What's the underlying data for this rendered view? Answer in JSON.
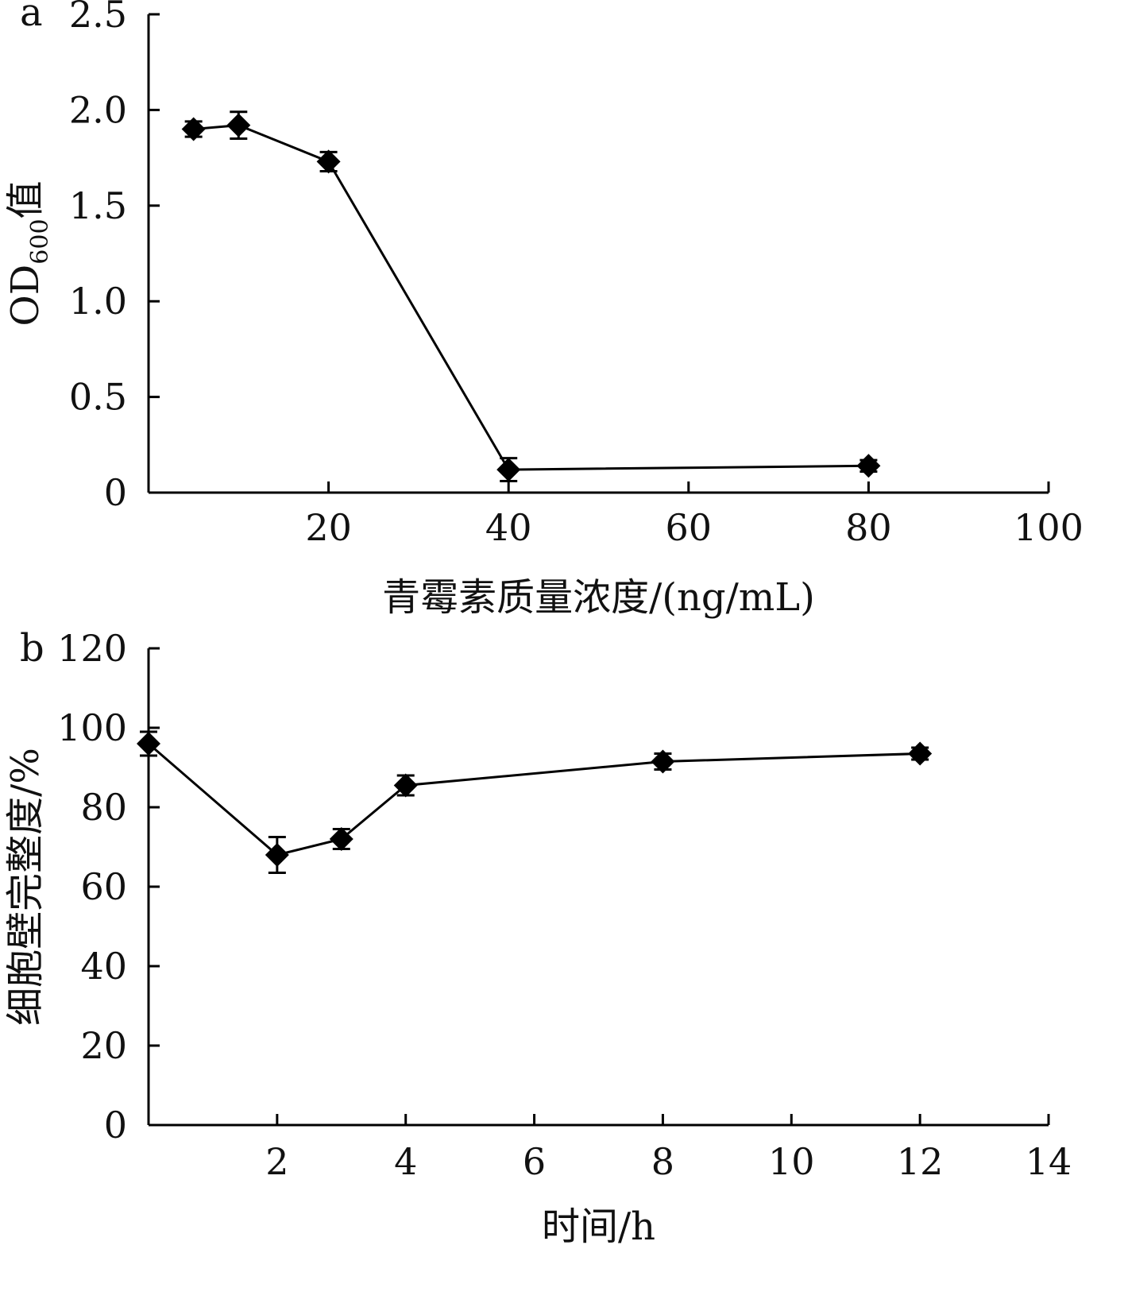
{
  "chart_data": [
    {
      "panel_label": "a",
      "type": "line",
      "xlabel": "青霉素质量浓度/(ng/mL)",
      "ylabel": "OD",
      "ylabel_sub": "600",
      "ylabel_suffix": "值",
      "xlim": [
        0,
        100
      ],
      "ylim": [
        0,
        2.5
      ],
      "x_ticks": [
        0,
        20,
        40,
        60,
        80,
        100
      ],
      "x_tick_labels": [
        "",
        "20",
        "40",
        "60",
        "80",
        "100"
      ],
      "y_ticks": [
        0,
        0.5,
        1.0,
        1.5,
        2.0,
        2.5
      ],
      "y_tick_labels": [
        "0",
        "0.5",
        "1.0",
        "1.5",
        "2.0",
        "2.5"
      ],
      "marker": "diamond",
      "color": "#000000",
      "x": [
        5,
        10,
        20,
        40,
        80
      ],
      "y": [
        1.9,
        1.92,
        1.73,
        0.12,
        0.14
      ],
      "error": [
        0.04,
        0.07,
        0.05,
        0.06,
        0.03
      ]
    },
    {
      "panel_label": "b",
      "type": "line",
      "xlabel": "时间/h",
      "ylabel": "细胞壁完整度/%",
      "xlim": [
        0,
        14
      ],
      "ylim": [
        0,
        120
      ],
      "x_ticks": [
        0,
        2,
        4,
        6,
        8,
        10,
        12,
        14
      ],
      "x_tick_labels": [
        "",
        "2",
        "4",
        "6",
        "8",
        "10",
        "12",
        "14"
      ],
      "y_ticks": [
        0,
        20,
        40,
        60,
        80,
        100,
        120
      ],
      "y_tick_labels": [
        "0",
        "20",
        "40",
        "60",
        "80",
        "100",
        "120"
      ],
      "marker": "diamond",
      "color": "#000000",
      "x": [
        0,
        2,
        3,
        4,
        8,
        12
      ],
      "y": [
        96,
        68,
        72,
        85.5,
        91.5,
        93.5
      ],
      "error": [
        3,
        4.5,
        2.5,
        2.5,
        2,
        1.5
      ]
    }
  ]
}
